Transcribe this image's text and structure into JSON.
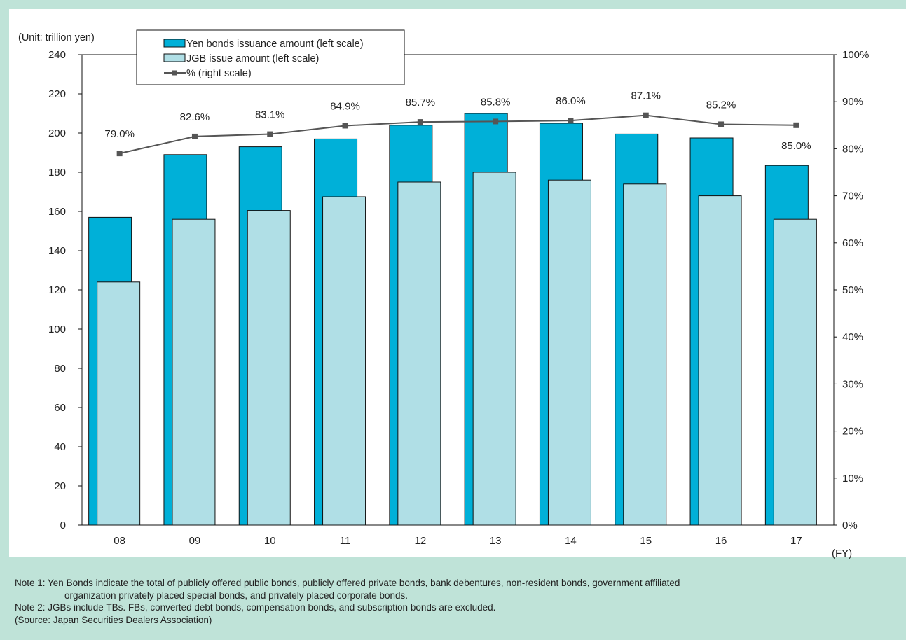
{
  "chart_data": {
    "type": "bar",
    "unit_label": "(Unit: trillion yen)",
    "x_unit_label": "(FY)",
    "categories": [
      "08",
      "09",
      "10",
      "11",
      "12",
      "13",
      "14",
      "15",
      "16",
      "17"
    ],
    "series": [
      {
        "name": "Yen bonds issuance amount (left scale)",
        "type": "bar",
        "axis": "left",
        "color": "#00b0d8",
        "values": [
          157,
          189,
          193,
          197,
          204,
          210,
          205,
          199.5,
          197.5,
          183.5
        ]
      },
      {
        "name": "JGB issue amount (left scale)",
        "type": "bar",
        "axis": "left",
        "color": "#b0dfe6",
        "values": [
          124,
          156,
          160.5,
          167.5,
          175,
          180,
          176,
          174,
          168,
          156
        ]
      },
      {
        "name": "% (right scale)",
        "type": "line",
        "axis": "right",
        "color": "#555555",
        "values": [
          79.0,
          82.6,
          83.1,
          84.9,
          85.7,
          85.8,
          86.0,
          87.1,
          85.2,
          85.0
        ],
        "labels": [
          "79.0%",
          "82.6%",
          "83.1%",
          "84.9%",
          "85.7%",
          "85.8%",
          "86.0%",
          "87.1%",
          "85.2%",
          "85.0%"
        ]
      }
    ],
    "y_left": {
      "min": 0,
      "max": 240,
      "ticks": [
        "0",
        "20",
        "40",
        "60",
        "80",
        "100",
        "120",
        "140",
        "160",
        "180",
        "200",
        "220",
        "240"
      ]
    },
    "y_right": {
      "min": 0,
      "max": 100,
      "ticks": [
        "0%",
        "10%",
        "20%",
        "30%",
        "40%",
        "50%",
        "60%",
        "70%",
        "80%",
        "90%",
        "100%"
      ]
    },
    "grid": false,
    "legend_position": "top-left"
  },
  "notes": {
    "note1_line1": "Note 1: Yen Bonds indicate the total of publicly offered public bonds, publicly offered private bonds, bank debentures, non-resident bonds, government  affiliated",
    "note1_line2": "organization privately placed special bonds, and privately placed corporate bonds.",
    "note2": "Note 2: JGBs include TBs. FBs, converted debt bonds, compensation bonds, and subscription bonds are excluded.",
    "source": "(Source: Japan Securities Dealers Association)"
  }
}
